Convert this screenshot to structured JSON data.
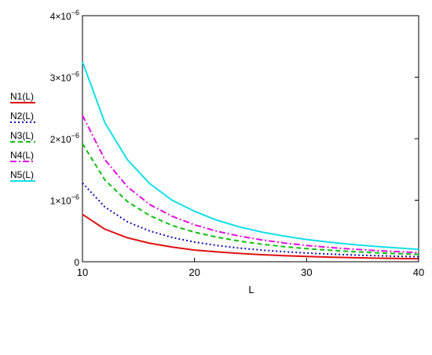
{
  "chart_data": {
    "type": "line",
    "xlabel": "L",
    "ylabel": "",
    "xlim": [
      10,
      40
    ],
    "ylim": [
      0,
      4e-06
    ],
    "grid": false,
    "legend_position": "left",
    "x_ticks": [
      10,
      20,
      30,
      40
    ],
    "x_tick_labels": [
      "10",
      "20",
      "30",
      "40"
    ],
    "y_ticks": [
      0,
      1e-06,
      2e-06,
      3e-06,
      4e-06
    ],
    "y_tick_labels": [
      {
        "mantissa": "0",
        "exp": ""
      },
      {
        "mantissa": "1×10",
        "exp": "−6"
      },
      {
        "mantissa": "2×10",
        "exp": "−6"
      },
      {
        "mantissa": "3×10",
        "exp": "−6"
      },
      {
        "mantissa": "4×10",
        "exp": "−6"
      }
    ],
    "x": [
      10,
      12,
      14,
      16,
      18,
      20,
      22,
      24,
      26,
      28,
      30,
      32,
      34,
      36,
      38,
      40
    ],
    "series": [
      {
        "name": "N1(L)",
        "color": "#e01010",
        "dash": "",
        "values": [
          7.7e-07,
          5.3e-07,
          3.9e-07,
          3e-07,
          2.4e-07,
          1.9e-07,
          1.6e-07,
          1.35e-07,
          1.15e-07,
          9.8e-08,
          8.6e-08,
          7.5e-08,
          6.7e-08,
          5.9e-08,
          5.3e-08,
          4.8e-08
        ]
      },
      {
        "name": "N2(L)",
        "color": "#1010b0",
        "dash": "2,3",
        "values": [
          1.28e-06,
          8.9e-07,
          6.5e-07,
          5e-07,
          3.95e-07,
          3.2e-07,
          2.65e-07,
          2.22e-07,
          1.9e-07,
          1.63e-07,
          1.42e-07,
          1.25e-07,
          1.11e-07,
          9.9e-08,
          8.9e-08,
          8e-08
        ]
      },
      {
        "name": "N3(L)",
        "color": "#10c010",
        "dash": "6,4",
        "values": [
          1.92e-06,
          1.33e-06,
          9.8e-07,
          7.5e-07,
          5.9e-07,
          4.8e-07,
          4e-07,
          3.35e-07,
          2.85e-07,
          2.45e-07,
          2.13e-07,
          1.87e-07,
          1.66e-07,
          1.48e-07,
          1.33e-07,
          1.2e-07
        ]
      },
      {
        "name": "N4(L)",
        "color": "#e010e0",
        "dash": "8,3,2,3",
        "values": [
          2.38e-06,
          1.66e-06,
          1.22e-06,
          9.3e-07,
          7.4e-07,
          6e-07,
          4.95e-07,
          4.16e-07,
          3.55e-07,
          3.05e-07,
          2.65e-07,
          2.33e-07,
          2.06e-07,
          1.84e-07,
          1.65e-07,
          1.49e-07
        ]
      },
      {
        "name": "N5(L)",
        "color": "#10e0e8",
        "dash": "",
        "values": [
          3.25e-06,
          2.26e-06,
          1.66e-06,
          1.27e-06,
          1e-06,
          8.2e-07,
          6.75e-07,
          5.67e-07,
          4.83e-07,
          4.16e-07,
          3.62e-07,
          3.18e-07,
          2.82e-07,
          2.51e-07,
          2.25e-07,
          2.03e-07
        ]
      }
    ]
  }
}
